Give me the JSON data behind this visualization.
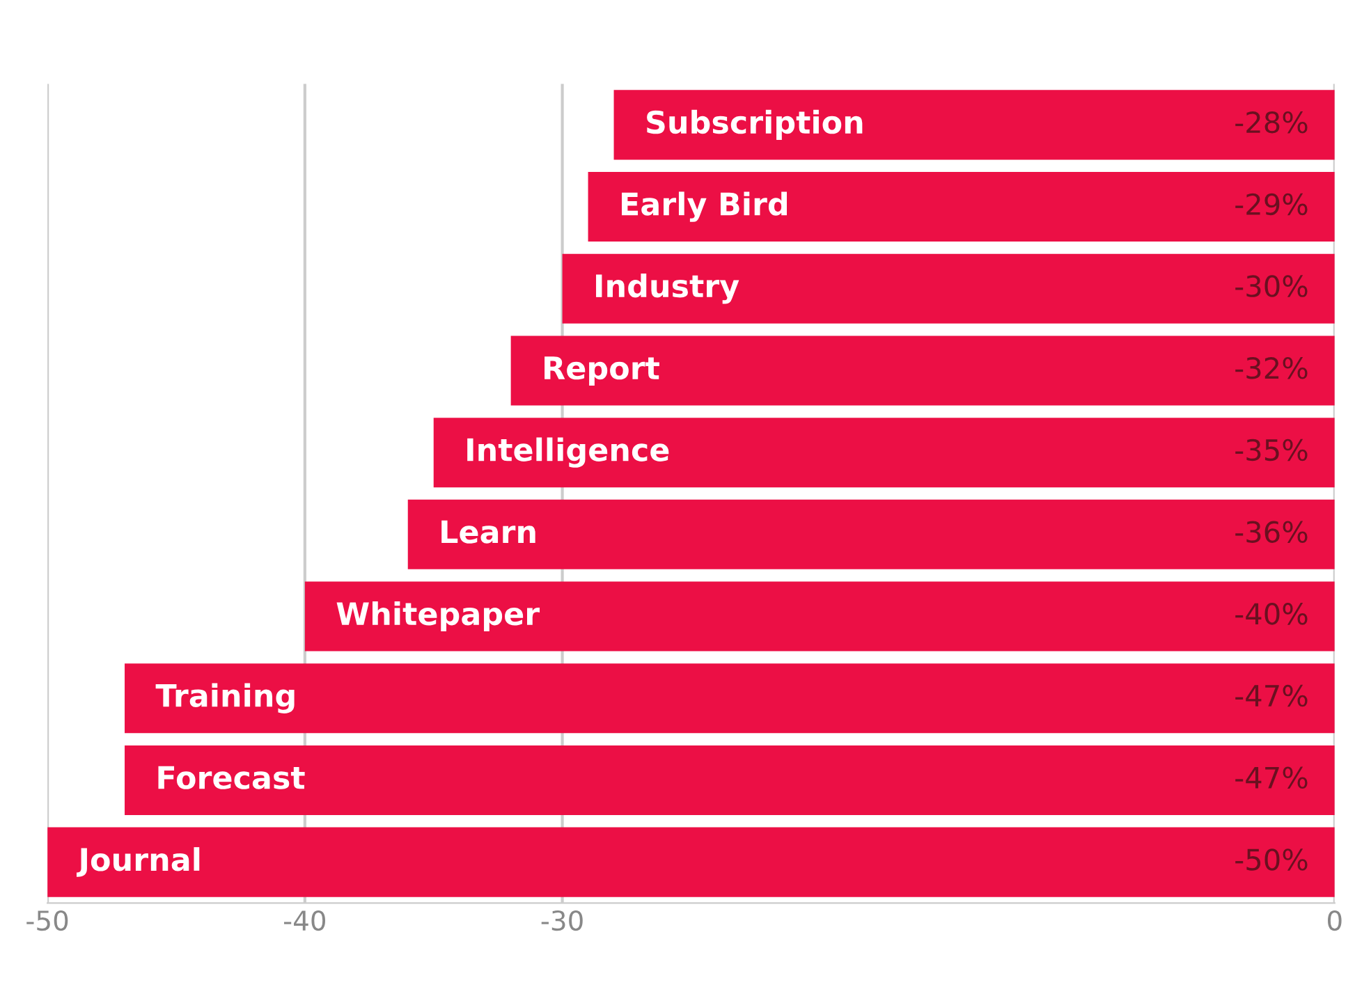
{
  "chart_data": {
    "type": "bar",
    "orientation": "horizontal",
    "categories": [
      "Subscription",
      "Early Bird",
      "Industry",
      "Report",
      "Intelligence",
      "Learn",
      "Whitepaper",
      "Training",
      "Forecast",
      "Journal"
    ],
    "values": [
      -28,
      -29,
      -30,
      -32,
      -35,
      -36,
      -40,
      -47,
      -47,
      -50
    ],
    "value_labels": [
      "-28%",
      "-29%",
      "-30%",
      "-32%",
      "-35%",
      "-36%",
      "-40%",
      "-47%",
      "-47%",
      "-50%"
    ],
    "color": "#ec0f45",
    "xlim": [
      -50,
      0
    ],
    "xticks": [
      -50,
      -40,
      -30,
      0
    ],
    "grid": "x",
    "tick_labels": "x"
  }
}
